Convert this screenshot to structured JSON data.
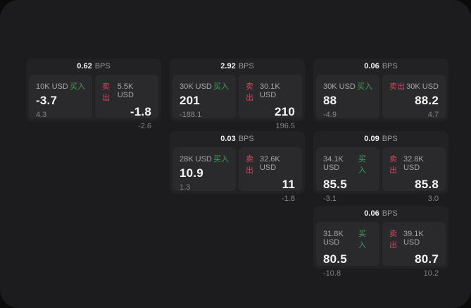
{
  "labels": {
    "bps_unit": "BPS",
    "buy": "买入",
    "sell": "卖出"
  },
  "colors": {
    "panel_bg": "#1c1c1e",
    "card_bg": "#222224",
    "tile_bg": "#2a2a2c",
    "buy_green": "#3da15a",
    "sell_red": "#c9485f",
    "value_white": "#f5f5f5",
    "muted_gray": "#85858a"
  },
  "cards": [
    {
      "bps": "0.62",
      "buy": {
        "amount": "10K USD",
        "value": "-3.7",
        "sub": "4.3"
      },
      "sell": {
        "amount": "5.5K USD",
        "value": "-1.8",
        "sub": "-2.6"
      }
    },
    {
      "bps": "2.92",
      "buy": {
        "amount": "30K USD",
        "value": "201",
        "sub": "-188.1"
      },
      "sell": {
        "amount": "30.1K USD",
        "value": "210",
        "sub": "196.5"
      }
    },
    {
      "bps": "0.06",
      "buy": {
        "amount": "30K USD",
        "value": "88",
        "sub": "-4.9"
      },
      "sell": {
        "amount": "30K USD",
        "value": "88.2",
        "sub": "4.7"
      }
    },
    {
      "bps": "0.03",
      "buy": {
        "amount": "28K USD",
        "value": "10.9",
        "sub": "1.3"
      },
      "sell": {
        "amount": "32.6K USD",
        "value": "11",
        "sub": "-1.8"
      }
    },
    {
      "bps": "0.09",
      "buy": {
        "amount": "34.1K USD",
        "value": "85.5",
        "sub": "-3.1"
      },
      "sell": {
        "amount": "32.8K USD",
        "value": "85.8",
        "sub": "3.0"
      }
    },
    {
      "bps": "0.06",
      "buy": {
        "amount": "31.8K USD",
        "value": "80.5",
        "sub": "-10.8"
      },
      "sell": {
        "amount": "39.1K USD",
        "value": "80.7",
        "sub": "10.2"
      }
    }
  ]
}
